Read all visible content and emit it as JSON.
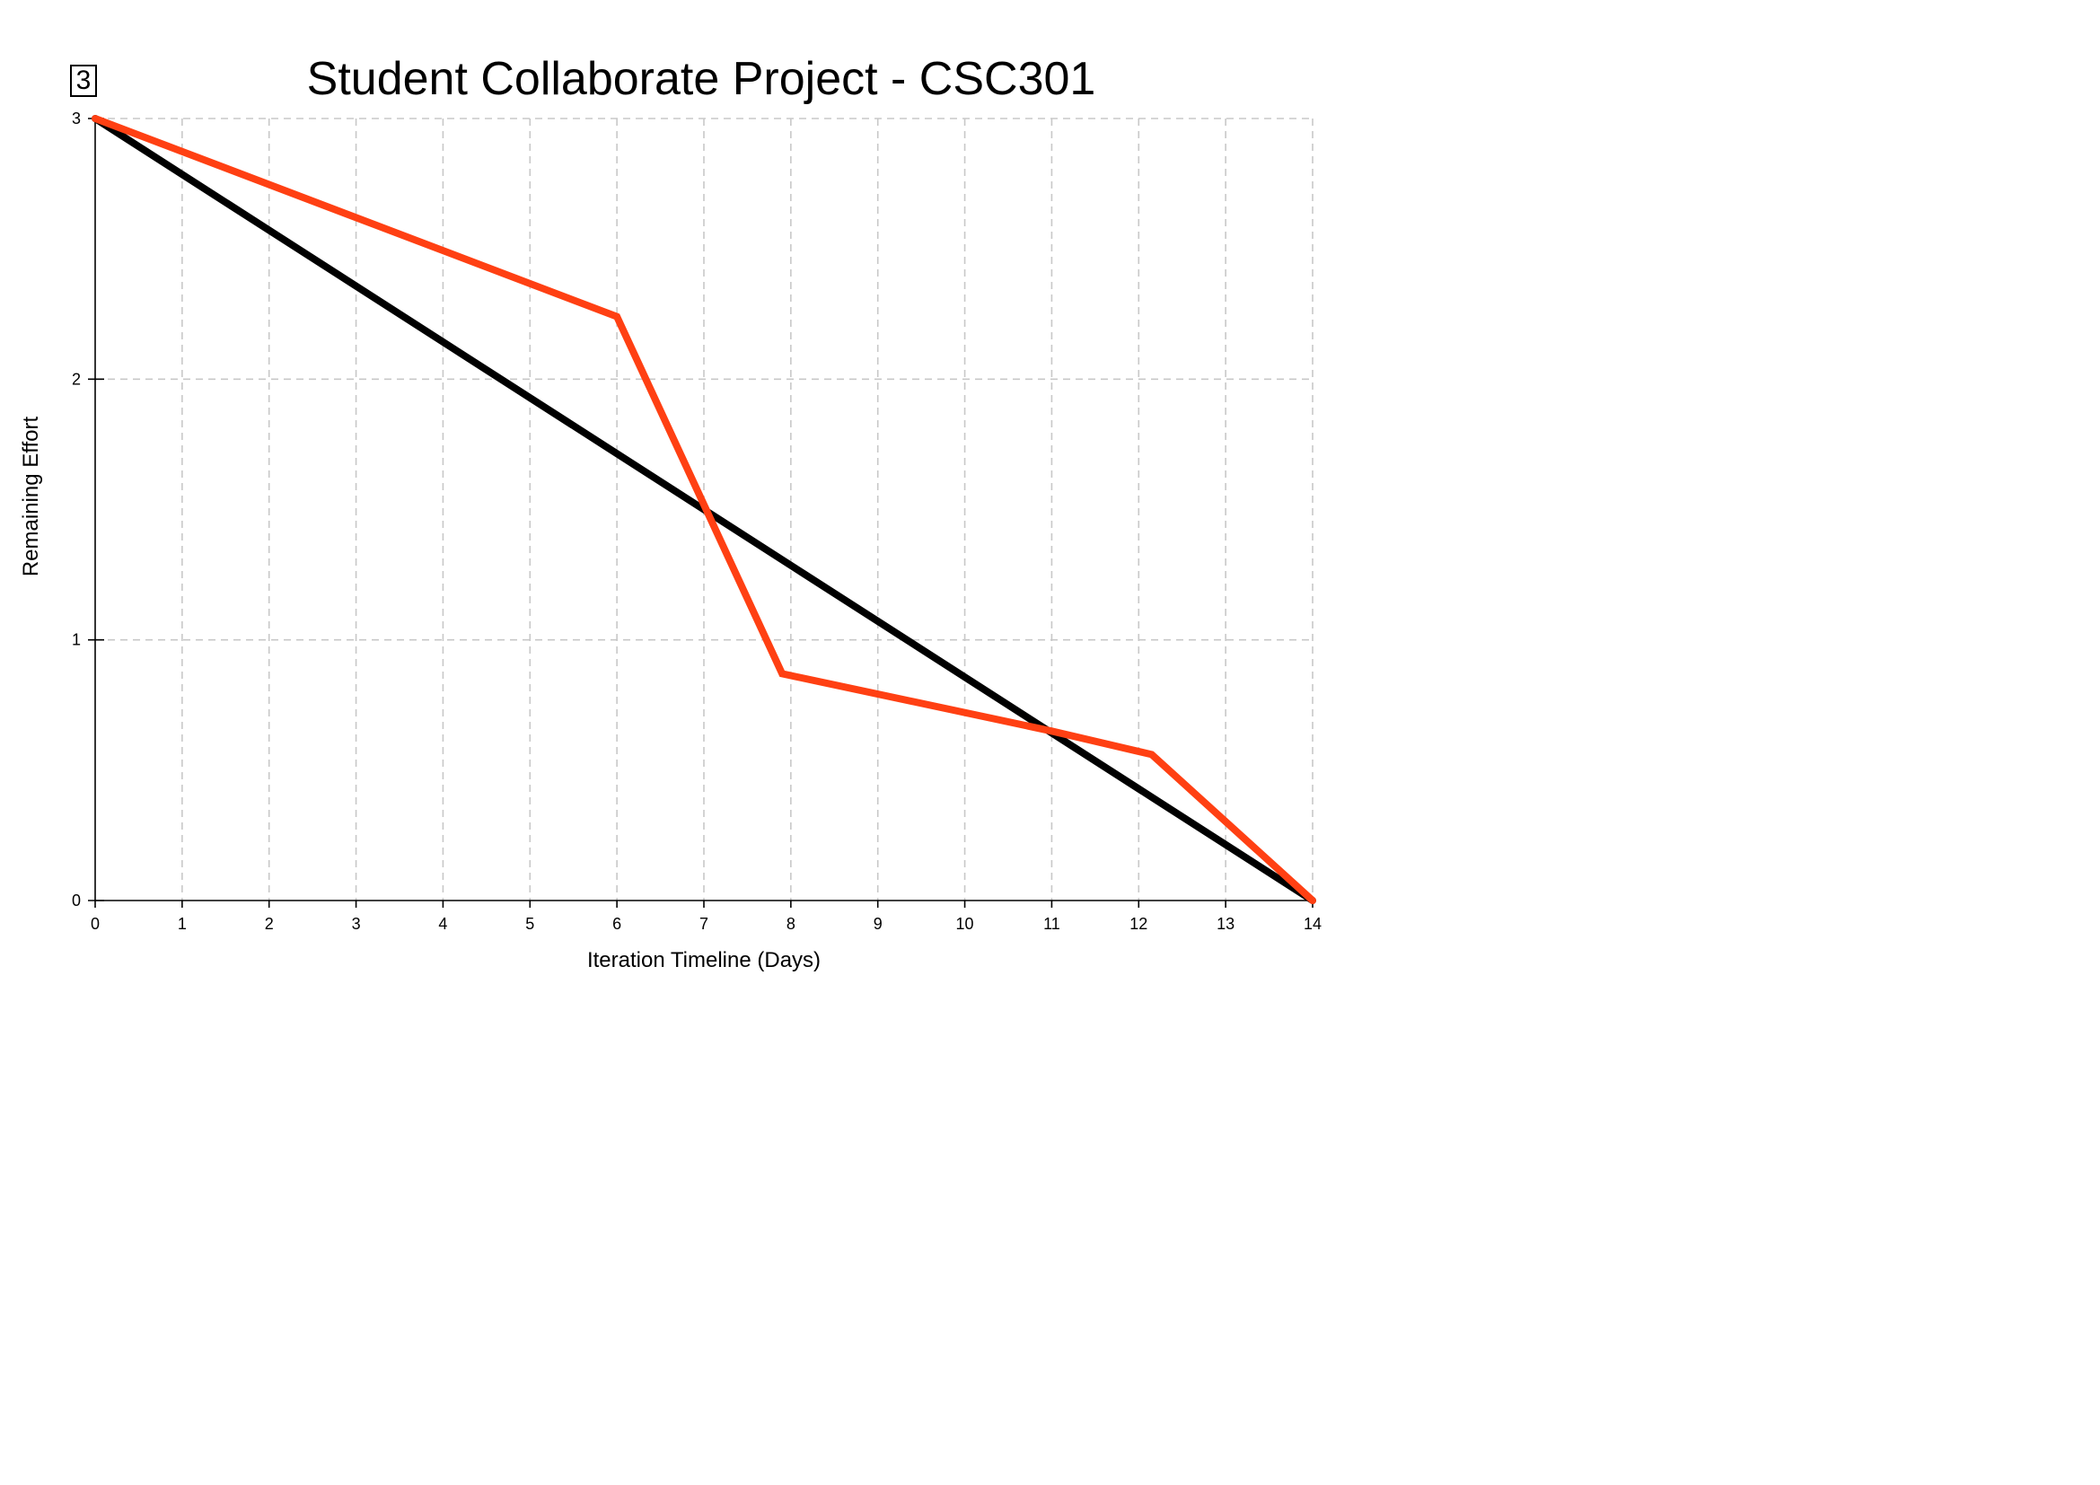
{
  "badge": "3",
  "chart_data": {
    "type": "line",
    "title": "Student Collaborate Project - CSC301",
    "xlabel": "Iteration Timeline (Days)",
    "ylabel": "Remaining Effort",
    "xlim": [
      0,
      14
    ],
    "ylim": [
      0,
      3
    ],
    "x_ticks": [
      0,
      1,
      2,
      3,
      4,
      5,
      6,
      7,
      8,
      9,
      10,
      11,
      12,
      13,
      14
    ],
    "x_tick_labels": [
      "0",
      "1",
      "2",
      "3",
      "4",
      "5",
      "6",
      "7",
      "8",
      "9",
      "10",
      "11",
      "12",
      "13",
      "14"
    ],
    "y_ticks": [
      0,
      1,
      2,
      3
    ],
    "y_tick_labels": [
      "0",
      "1",
      "2",
      "3"
    ],
    "grid": true,
    "grid_style": "dashed",
    "legend": false,
    "series": [
      {
        "color": "#000000",
        "points": [
          {
            "x": 0,
            "y": 3
          },
          {
            "x": 14,
            "y": 0
          }
        ]
      },
      {
        "color": "#ff4013",
        "points": [
          {
            "x": 0,
            "y": 3
          },
          {
            "x": 6,
            "y": 2.24
          },
          {
            "x": 7.9,
            "y": 0.87
          },
          {
            "x": 11,
            "y": 0.65
          },
          {
            "x": 12.15,
            "y": 0.56
          },
          {
            "x": 14,
            "y": 0
          }
        ]
      }
    ]
  }
}
